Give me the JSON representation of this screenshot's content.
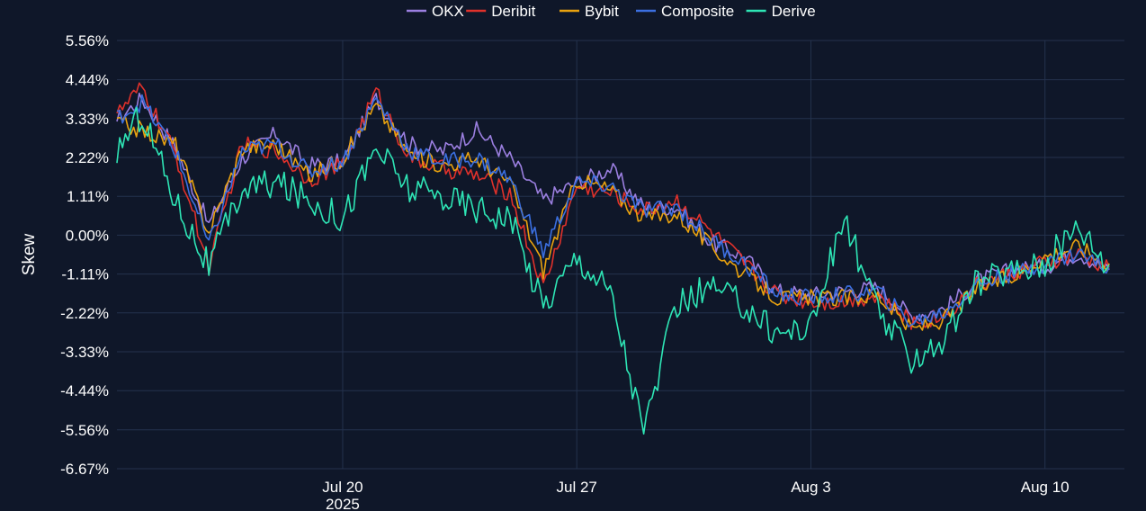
{
  "chart_data": {
    "type": "line",
    "ylabel": "Skew",
    "x_date_labels": [
      "Jul 20",
      "Jul 27",
      "Aug 3",
      "Aug 10"
    ],
    "x_year_label": "2025",
    "x_range": [
      "2025-07-13T06:00",
      "2025-08-12T09:00"
    ],
    "x_tick_dates": [
      "2025-07-20",
      "2025-07-27",
      "2025-08-03",
      "2025-08-10"
    ],
    "y_ticks": [
      "5.56%",
      "4.44%",
      "3.33%",
      "2.22%",
      "1.11%",
      "0.00%",
      "-1.11%",
      "-2.22%",
      "-3.33%",
      "-4.44%",
      "-5.56%",
      "-6.67%"
    ],
    "ylim": [
      -6.67,
      5.56
    ],
    "grid": true,
    "legend_position": "top",
    "x": [
      "2025-07-13",
      "2025-07-14",
      "2025-07-15",
      "2025-07-16",
      "2025-07-17",
      "2025-07-18",
      "2025-07-19",
      "2025-07-20",
      "2025-07-21",
      "2025-07-22",
      "2025-07-23",
      "2025-07-24",
      "2025-07-25",
      "2025-07-26",
      "2025-07-27",
      "2025-07-28",
      "2025-07-29",
      "2025-07-30",
      "2025-07-31",
      "2025-08-01",
      "2025-08-02",
      "2025-08-03",
      "2025-08-04",
      "2025-08-05",
      "2025-08-06",
      "2025-08-07",
      "2025-08-08",
      "2025-08-09",
      "2025-08-10",
      "2025-08-11",
      "2025-08-12"
    ],
    "series": [
      {
        "name": "OKX",
        "color": "#9b7fe0",
        "values": [
          3.1,
          3.9,
          2.5,
          0.3,
          2.2,
          2.9,
          2.0,
          2.1,
          3.9,
          2.6,
          2.4,
          3.0,
          2.2,
          1.0,
          1.5,
          1.9,
          0.8,
          0.8,
          -0.2,
          -0.6,
          -1.6,
          -1.7,
          -1.6,
          -1.5,
          -2.3,
          -2.1,
          -1.3,
          -1.0,
          -0.9,
          -0.5,
          -1.1
        ]
      },
      {
        "name": "Deribit",
        "color": "#e0312b",
        "values": [
          3.2,
          4.2,
          2.3,
          -0.9,
          2.6,
          2.4,
          1.6,
          2.0,
          4.1,
          2.2,
          1.9,
          1.7,
          1.2,
          -1.5,
          1.4,
          1.2,
          0.7,
          1.0,
          0.1,
          -0.8,
          -1.7,
          -1.9,
          -1.9,
          -1.7,
          -2.5,
          -2.3,
          -1.4,
          -1.1,
          -0.8,
          -0.6,
          -1.0
        ]
      },
      {
        "name": "Bybit",
        "color": "#e9a20f",
        "values": [
          3.3,
          3.0,
          2.6,
          0.1,
          2.5,
          2.6,
          1.7,
          2.2,
          3.7,
          2.3,
          2.0,
          2.2,
          1.5,
          -1.0,
          1.6,
          1.3,
          0.5,
          0.6,
          -0.3,
          -1.1,
          -1.8,
          -1.8,
          -1.8,
          -1.7,
          -2.7,
          -2.4,
          -1.5,
          -1.2,
          -0.6,
          -0.3,
          -0.9
        ]
      },
      {
        "name": "Composite",
        "color": "#3b6fe0",
        "values": [
          3.2,
          3.8,
          2.4,
          -0.3,
          2.4,
          2.6,
          1.8,
          2.1,
          3.9,
          2.4,
          2.1,
          2.2,
          1.6,
          -0.5,
          1.5,
          1.4,
          0.7,
          0.8,
          -0.1,
          -0.8,
          -1.7,
          -1.8,
          -1.7,
          -1.6,
          -2.5,
          -2.2,
          -1.4,
          -1.1,
          -0.8,
          -0.5,
          -1.0
        ]
      },
      {
        "name": "Derive",
        "color": "#2ee5b5",
        "values": [
          2.1,
          3.5,
          1.0,
          -0.9,
          1.3,
          1.5,
          1.0,
          0.5,
          2.5,
          1.3,
          1.1,
          0.8,
          0.5,
          -2.0,
          -0.6,
          -1.6,
          -5.6,
          -2.0,
          -1.5,
          -2.0,
          -2.8,
          -2.6,
          0.5,
          -2.2,
          -3.5,
          -3.0,
          -1.3,
          -1.0,
          -0.8,
          0.3,
          -1.0
        ]
      }
    ]
  }
}
